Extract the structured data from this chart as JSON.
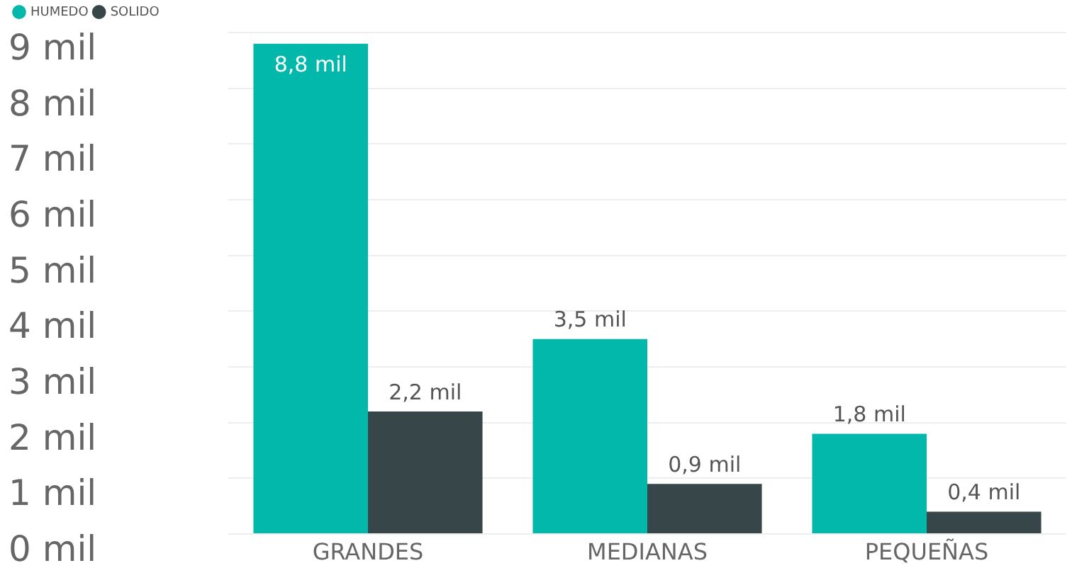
{
  "chart_data": {
    "type": "bar",
    "categories": [
      "GRANDES",
      "MEDIANAS",
      "PEQUEÑAS"
    ],
    "series": [
      {
        "name": "HUMEDO",
        "color": "#01b8aa",
        "values": [
          8.8,
          3.5,
          1.8
        ],
        "value_labels": [
          "8,8 mil",
          "3,5 mil",
          "1,8 mil"
        ]
      },
      {
        "name": "SOLIDO",
        "color": "#374649",
        "values": [
          2.2,
          0.9,
          0.4
        ],
        "value_labels": [
          "2,2 mil",
          "0,9 mil",
          "0,4 mil"
        ]
      }
    ],
    "ylim": [
      0,
      9
    ],
    "yticks": [
      {
        "value": 0,
        "label": "0 mil"
      },
      {
        "value": 1,
        "label": "1 mil"
      },
      {
        "value": 2,
        "label": "2 mil"
      },
      {
        "value": 3,
        "label": "3 mil"
      },
      {
        "value": 4,
        "label": "4 mil"
      },
      {
        "value": 5,
        "label": "5 mil"
      },
      {
        "value": 6,
        "label": "6 mil"
      },
      {
        "value": 7,
        "label": "7 mil"
      },
      {
        "value": 8,
        "label": "8 mil"
      },
      {
        "value": 9,
        "label": "9 mil"
      }
    ],
    "grid": "y",
    "legend": "top left"
  }
}
